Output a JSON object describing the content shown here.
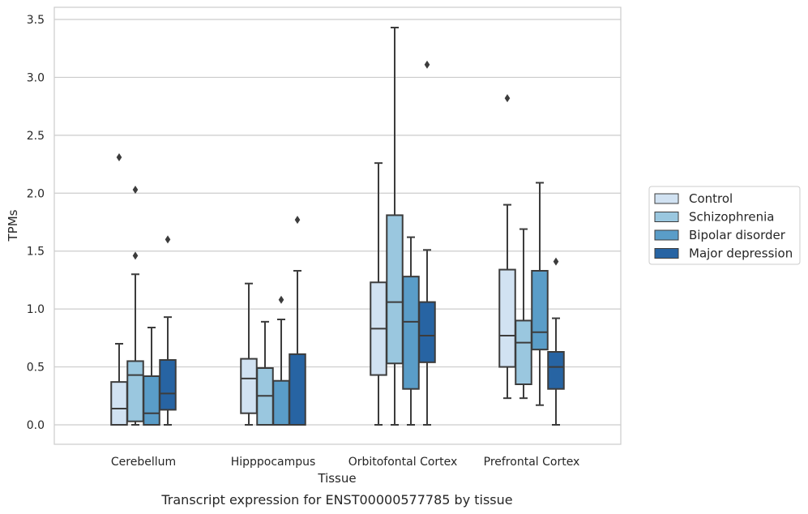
{
  "chart_data": {
    "type": "box",
    "title": "",
    "caption": "Transcript expression for ENST00000577785 by tissue",
    "xlabel": "Tissue",
    "ylabel": "TPMs",
    "ylim": [
      -0.16,
      3.6
    ],
    "yticks": [
      "0.0",
      "0.5",
      "1.0",
      "1.5",
      "2.0",
      "2.5",
      "3.0",
      "3.5"
    ],
    "ytick_values": [
      0,
      0.5,
      1.0,
      1.5,
      2.0,
      2.5,
      3.0,
      3.5
    ],
    "grid": "horizontal",
    "legend_position": "right",
    "categories": [
      "Cerebellum",
      "Hipppocampus",
      "Orbitofontal Cortex",
      "Prefrontal Cortex"
    ],
    "series": [
      {
        "name": "Control",
        "color": "#d1e2f2",
        "boxes": [
          {
            "whislo": 0.0,
            "q1": 0.0,
            "med": 0.14,
            "q3": 0.37,
            "whishi": 0.7,
            "fliers": [
              2.31
            ]
          },
          {
            "whislo": 0.0,
            "q1": 0.1,
            "med": 0.4,
            "q3": 0.57,
            "whishi": 1.22,
            "fliers": []
          },
          {
            "whislo": 0.0,
            "q1": 0.43,
            "med": 0.83,
            "q3": 1.23,
            "whishi": 2.26,
            "fliers": []
          },
          {
            "whislo": 0.23,
            "q1": 0.5,
            "med": 0.77,
            "q3": 1.34,
            "whishi": 1.9,
            "fliers": [
              2.82
            ]
          }
        ]
      },
      {
        "name": "Schizophrenia",
        "color": "#9ac7df",
        "boxes": [
          {
            "whislo": 0.0,
            "q1": 0.03,
            "med": 0.43,
            "q3": 0.55,
            "whishi": 1.3,
            "fliers": [
              1.46,
              2.03
            ]
          },
          {
            "whislo": 0.0,
            "q1": 0.0,
            "med": 0.25,
            "q3": 0.49,
            "whishi": 0.89,
            "fliers": []
          },
          {
            "whislo": 0.0,
            "q1": 0.53,
            "med": 1.06,
            "q3": 1.81,
            "whishi": 3.43,
            "fliers": []
          },
          {
            "whislo": 0.23,
            "q1": 0.35,
            "med": 0.71,
            "q3": 0.9,
            "whishi": 1.69,
            "fliers": []
          }
        ]
      },
      {
        "name": "Bipolar disorder",
        "color": "#5a9dc8",
        "boxes": [
          {
            "whislo": 0.0,
            "q1": 0.0,
            "med": 0.1,
            "q3": 0.42,
            "whishi": 0.84,
            "fliers": []
          },
          {
            "whislo": 0.0,
            "q1": 0.0,
            "med": 0.0,
            "q3": 0.38,
            "whishi": 0.91,
            "fliers": [
              1.08
            ]
          },
          {
            "whislo": 0.0,
            "q1": 0.31,
            "med": 0.89,
            "q3": 1.28,
            "whishi": 1.62,
            "fliers": []
          },
          {
            "whislo": 0.17,
            "q1": 0.65,
            "med": 0.8,
            "q3": 1.33,
            "whishi": 2.09,
            "fliers": []
          }
        ]
      },
      {
        "name": "Major depression",
        "color": "#2764a3",
        "boxes": [
          {
            "whislo": 0.0,
            "q1": 0.13,
            "med": 0.27,
            "q3": 0.56,
            "whishi": 0.93,
            "fliers": [
              1.6
            ]
          },
          {
            "whislo": 0.0,
            "q1": 0.0,
            "med": 0.0,
            "q3": 0.61,
            "whishi": 1.33,
            "fliers": [
              1.77
            ]
          },
          {
            "whislo": 0.0,
            "q1": 0.54,
            "med": 0.77,
            "q3": 1.06,
            "whishi": 1.51,
            "fliers": [
              3.11
            ]
          },
          {
            "whislo": 0.0,
            "q1": 0.31,
            "med": 0.5,
            "q3": 0.63,
            "whishi": 0.92,
            "fliers": [
              1.41
            ]
          }
        ]
      }
    ]
  }
}
